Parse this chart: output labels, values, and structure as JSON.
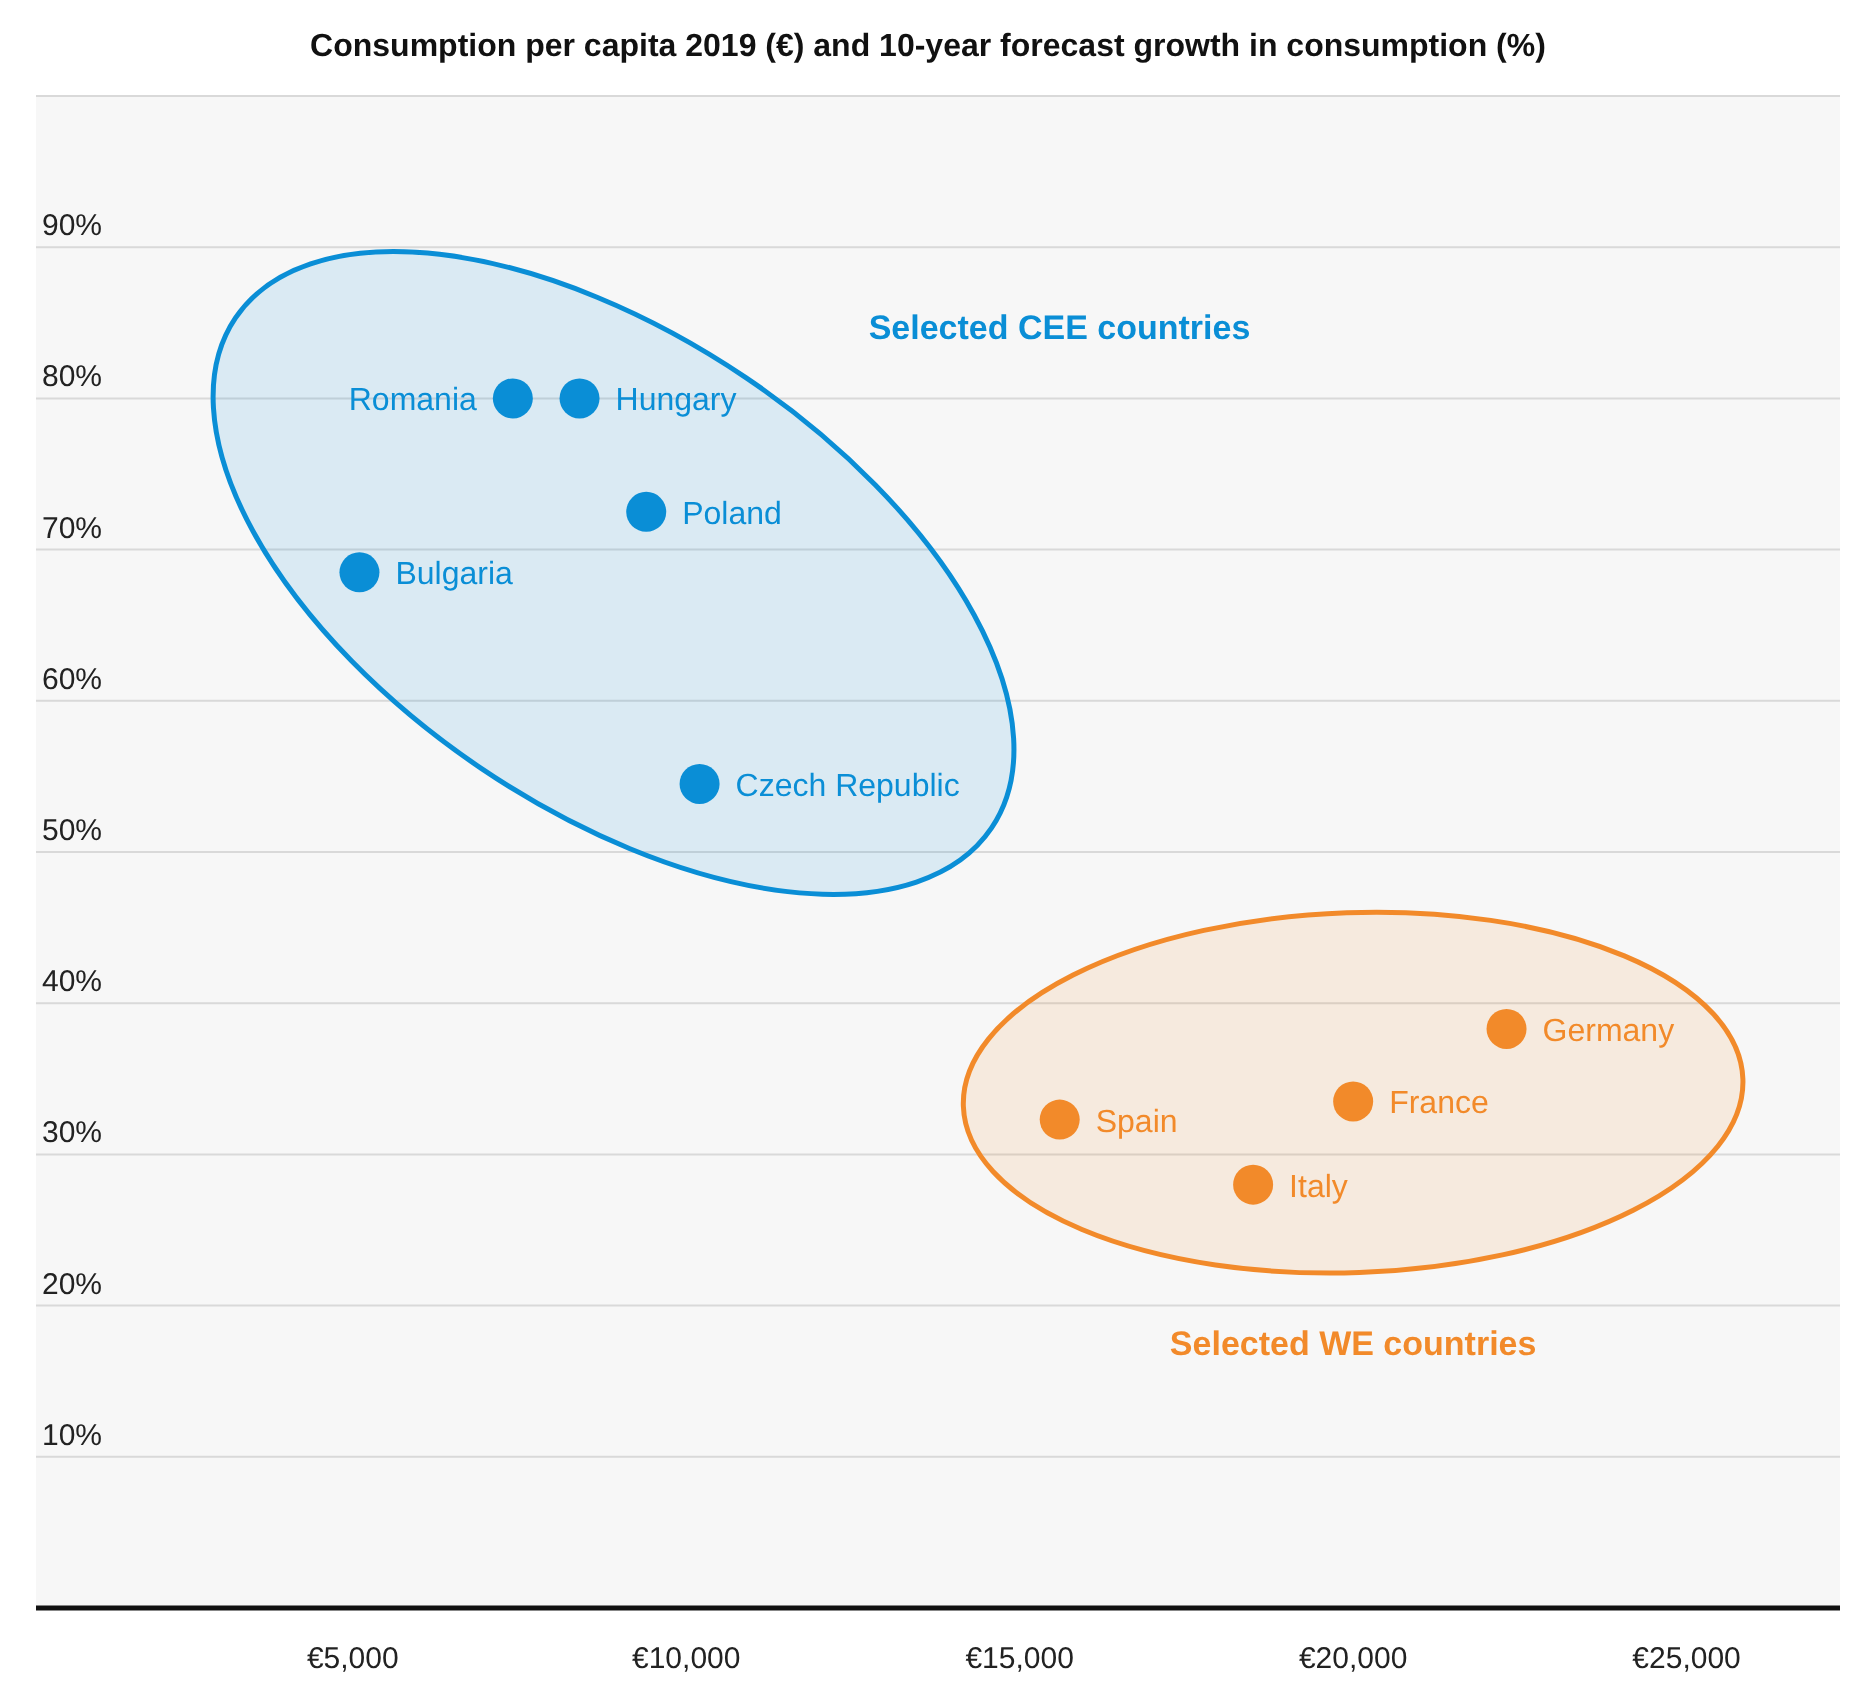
{
  "chart_data": {
    "type": "scatter",
    "title": "Consumption per capita 2019 (€) and 10-year forecast growth in consumption (%)",
    "xlim": [
      250,
      27450
    ],
    "xticks": [
      {
        "value": 5000,
        "label": "€5,000"
      },
      {
        "value": 10000,
        "label": "€10,000"
      },
      {
        "value": 15000,
        "label": "€15,000"
      },
      {
        "value": 20000,
        "label": "€20,000"
      },
      {
        "value": 25000,
        "label": "€25,000"
      }
    ],
    "ylim": [
      0,
      100
    ],
    "yticks": [
      {
        "value": 10,
        "label": "10%"
      },
      {
        "value": 20,
        "label": "20%"
      },
      {
        "value": 30,
        "label": "30%"
      },
      {
        "value": 40,
        "label": "40%"
      },
      {
        "value": 50,
        "label": "50%"
      },
      {
        "value": 60,
        "label": "60%"
      },
      {
        "value": 70,
        "label": "70%"
      },
      {
        "value": 80,
        "label": "80%"
      },
      {
        "value": 90,
        "label": "90%"
      },
      {
        "value": 100,
        "label": null
      }
    ],
    "grid": "y",
    "legend": false,
    "marker": "circle",
    "series": [
      {
        "name": "Romania",
        "color": "#0a8ed6",
        "x": [
          7400
        ],
        "values": [
          80
        ]
      },
      {
        "name": "Hungary",
        "color": "#0a8ed6",
        "x": [
          8400
        ],
        "values": [
          80
        ]
      },
      {
        "name": "Poland",
        "color": "#0a8ed6",
        "x": [
          9400
        ],
        "values": [
          72.5
        ]
      },
      {
        "name": "Bulgaria",
        "color": "#0a8ed6",
        "x": [
          5100
        ],
        "values": [
          68.5
        ]
      },
      {
        "name": "Czech Republic",
        "color": "#0a8ed6",
        "x": [
          10200
        ],
        "values": [
          54.5
        ]
      },
      {
        "name": "Spain",
        "color": "#f28a2a",
        "x": [
          15600
        ],
        "values": [
          32.3
        ]
      },
      {
        "name": "Italy",
        "color": "#f28a2a",
        "x": [
          18500
        ],
        "values": [
          28
        ]
      },
      {
        "name": "France",
        "color": "#f28a2a",
        "x": [
          20000
        ],
        "values": [
          33.5
        ]
      },
      {
        "name": "Germany",
        "color": "#f28a2a",
        "x": [
          22300
        ],
        "values": [
          38.3
        ]
      }
    ],
    "annotations": [
      "Selected CEE countries",
      "Selected WE countries"
    ]
  }
}
